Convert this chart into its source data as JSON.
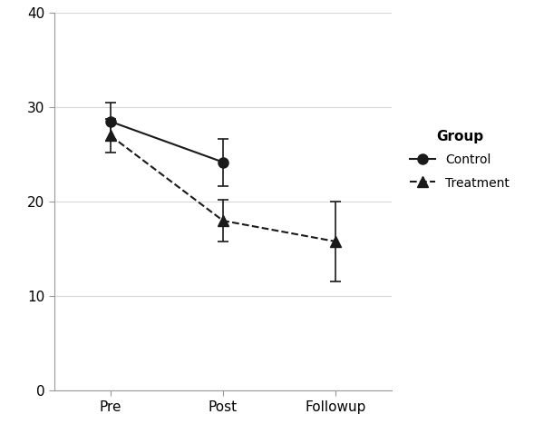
{
  "x_labels": [
    "Pre",
    "Post",
    "Followup"
  ],
  "x_positions": [
    0,
    1,
    2
  ],
  "control_mean_pre": 28.5,
  "control_mean_post": 24.2,
  "control_err_pre": 2.0,
  "control_err_post": 2.5,
  "treatment_mean_pre": 27.0,
  "treatment_mean_post": 18.0,
  "treatment_mean_followup": 15.8,
  "treatment_err_pre": 1.8,
  "treatment_err_post": 2.2,
  "treatment_err_followup": 4.2,
  "ylim": [
    0,
    40
  ],
  "yticks": [
    0,
    10,
    20,
    30,
    40
  ],
  "legend_title": "Group",
  "legend_control": "Control",
  "legend_treatment": "Treatment",
  "line_color": "#1a1a1a",
  "background_color": "#ffffff",
  "grid_color": "#d8d8d8",
  "figsize": [
    6.0,
    4.78
  ],
  "dpi": 100
}
